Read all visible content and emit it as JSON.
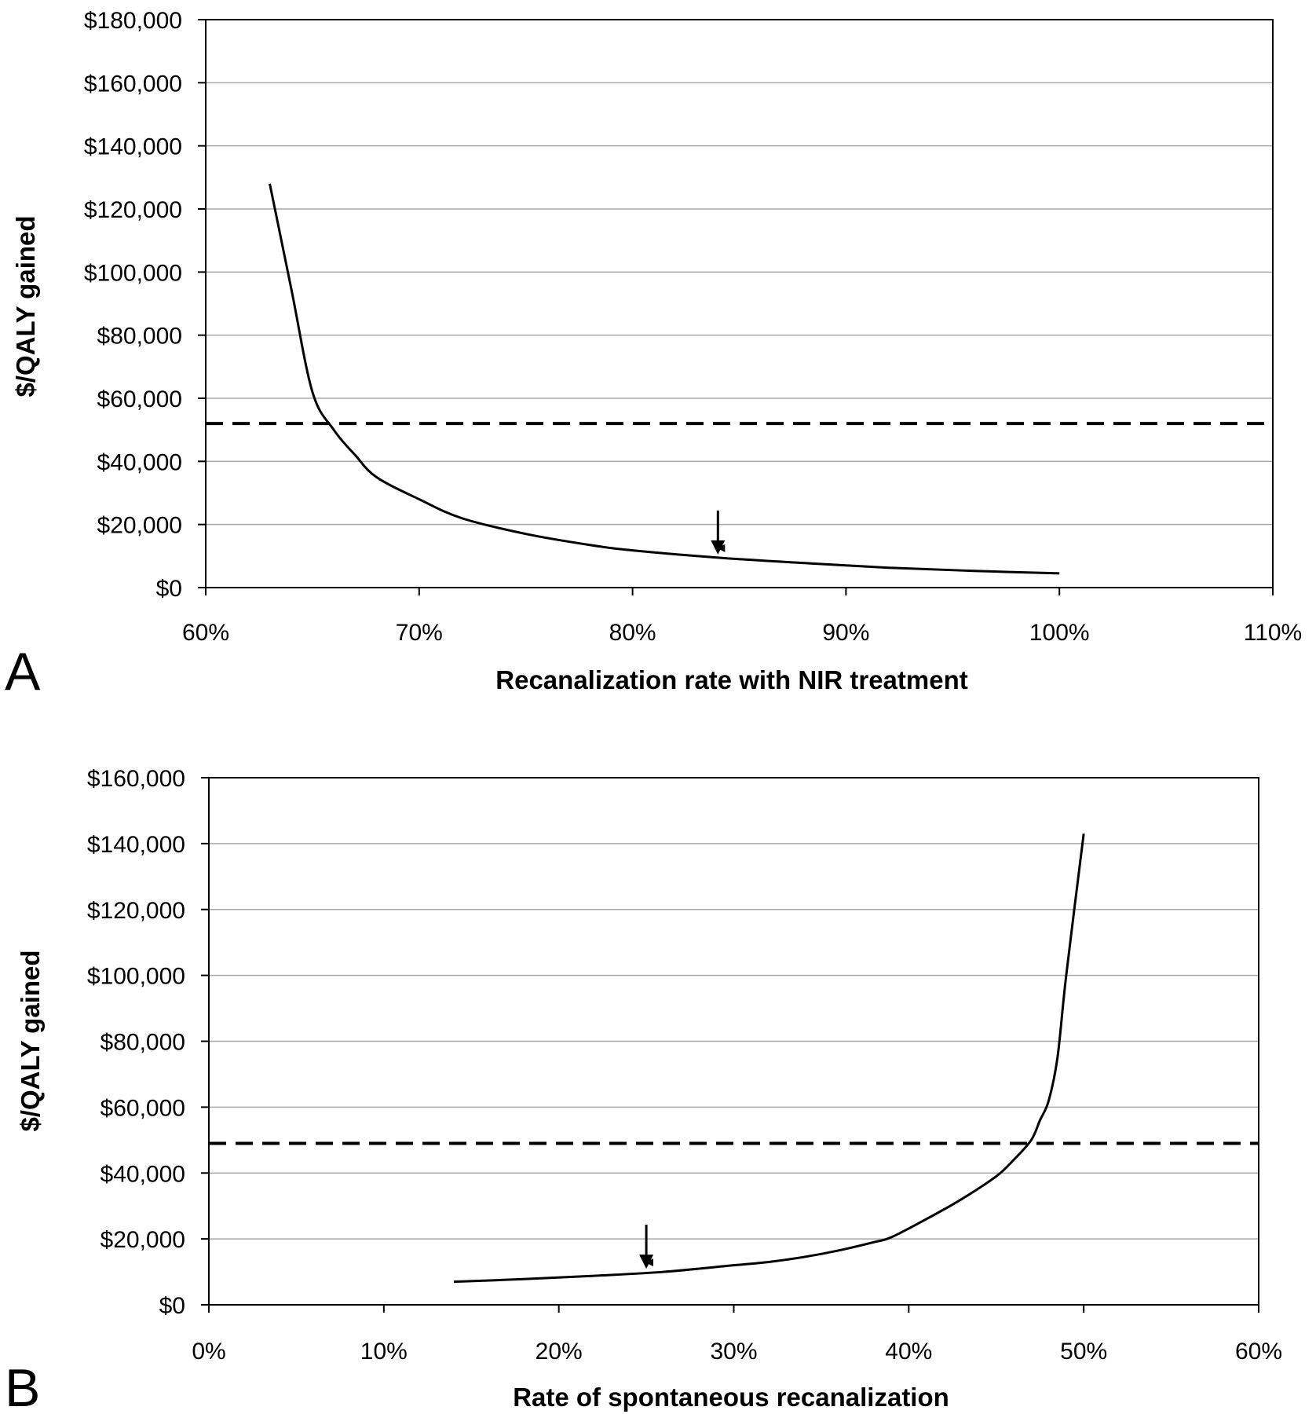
{
  "panels": [
    {
      "letter": "A"
    },
    {
      "letter": "B"
    }
  ],
  "chart_data": [
    {
      "type": "line",
      "panel": "A",
      "xlabel": "Recanalization rate with NIR treatment",
      "ylabel": "$/QALY gained",
      "xlim": [
        0.6,
        1.1
      ],
      "ylim": [
        0,
        180000
      ],
      "x_ticks": [
        0.6,
        0.7,
        0.8,
        0.9,
        1.0,
        1.1
      ],
      "x_tick_labels": [
        "60%",
        "70%",
        "80%",
        "90%",
        "100%",
        "110%"
      ],
      "y_ticks": [
        0,
        20000,
        40000,
        60000,
        80000,
        100000,
        120000,
        140000,
        160000,
        180000
      ],
      "y_tick_labels": [
        "$0",
        "$20,000",
        "$40,000",
        "$60,000",
        "$80,000",
        "$100,000",
        "$120,000",
        "$140,000",
        "$160,000",
        "$180,000"
      ],
      "grid": true,
      "series": [
        {
          "x": [
            0.63,
            0.64,
            0.65,
            0.66,
            0.67,
            0.68,
            0.7,
            0.72,
            0.75,
            0.78,
            0.8,
            0.84,
            0.88,
            0.92,
            0.96,
            1.0
          ],
          "values": [
            128000,
            95000,
            62000,
            50000,
            42000,
            35000,
            28000,
            22000,
            17000,
            13500,
            11800,
            9500,
            7800,
            6300,
            5300,
            4500
          ]
        }
      ],
      "threshold": 52000,
      "arrow_at": 0.84,
      "arrow_value": 9500
    },
    {
      "type": "line",
      "panel": "B",
      "xlabel": "Rate of spontaneous recanalization",
      "ylabel": "$/QALY gained",
      "xlim": [
        0,
        0.6
      ],
      "ylim": [
        0,
        160000
      ],
      "x_ticks": [
        0,
        0.1,
        0.2,
        0.3,
        0.4,
        0.5,
        0.6
      ],
      "x_tick_labels": [
        "0%",
        "10%",
        "20%",
        "30%",
        "40%",
        "50%",
        "60%"
      ],
      "y_ticks": [
        0,
        20000,
        40000,
        60000,
        80000,
        100000,
        120000,
        140000,
        160000
      ],
      "y_tick_labels": [
        "$0",
        "$20,000",
        "$40,000",
        "$60,000",
        "$80,000",
        "$100,000",
        "$120,000",
        "$140,000",
        "$160,000"
      ],
      "grid": true,
      "series": [
        {
          "x": [
            0.14,
            0.18,
            0.22,
            0.26,
            0.3,
            0.32,
            0.34,
            0.36,
            0.38,
            0.39,
            0.41,
            0.43,
            0.45,
            0.46,
            0.47,
            0.475,
            0.48,
            0.485,
            0.49,
            0.5
          ],
          "values": [
            7000,
            7800,
            8800,
            10000,
            12000,
            13000,
            14500,
            16500,
            19000,
            20500,
            26000,
            32000,
            39000,
            44000,
            50000,
            56000,
            62000,
            75000,
            100000,
            143000
          ]
        }
      ],
      "threshold": 49000,
      "arrow_at": 0.25,
      "arrow_value": 10000
    }
  ]
}
